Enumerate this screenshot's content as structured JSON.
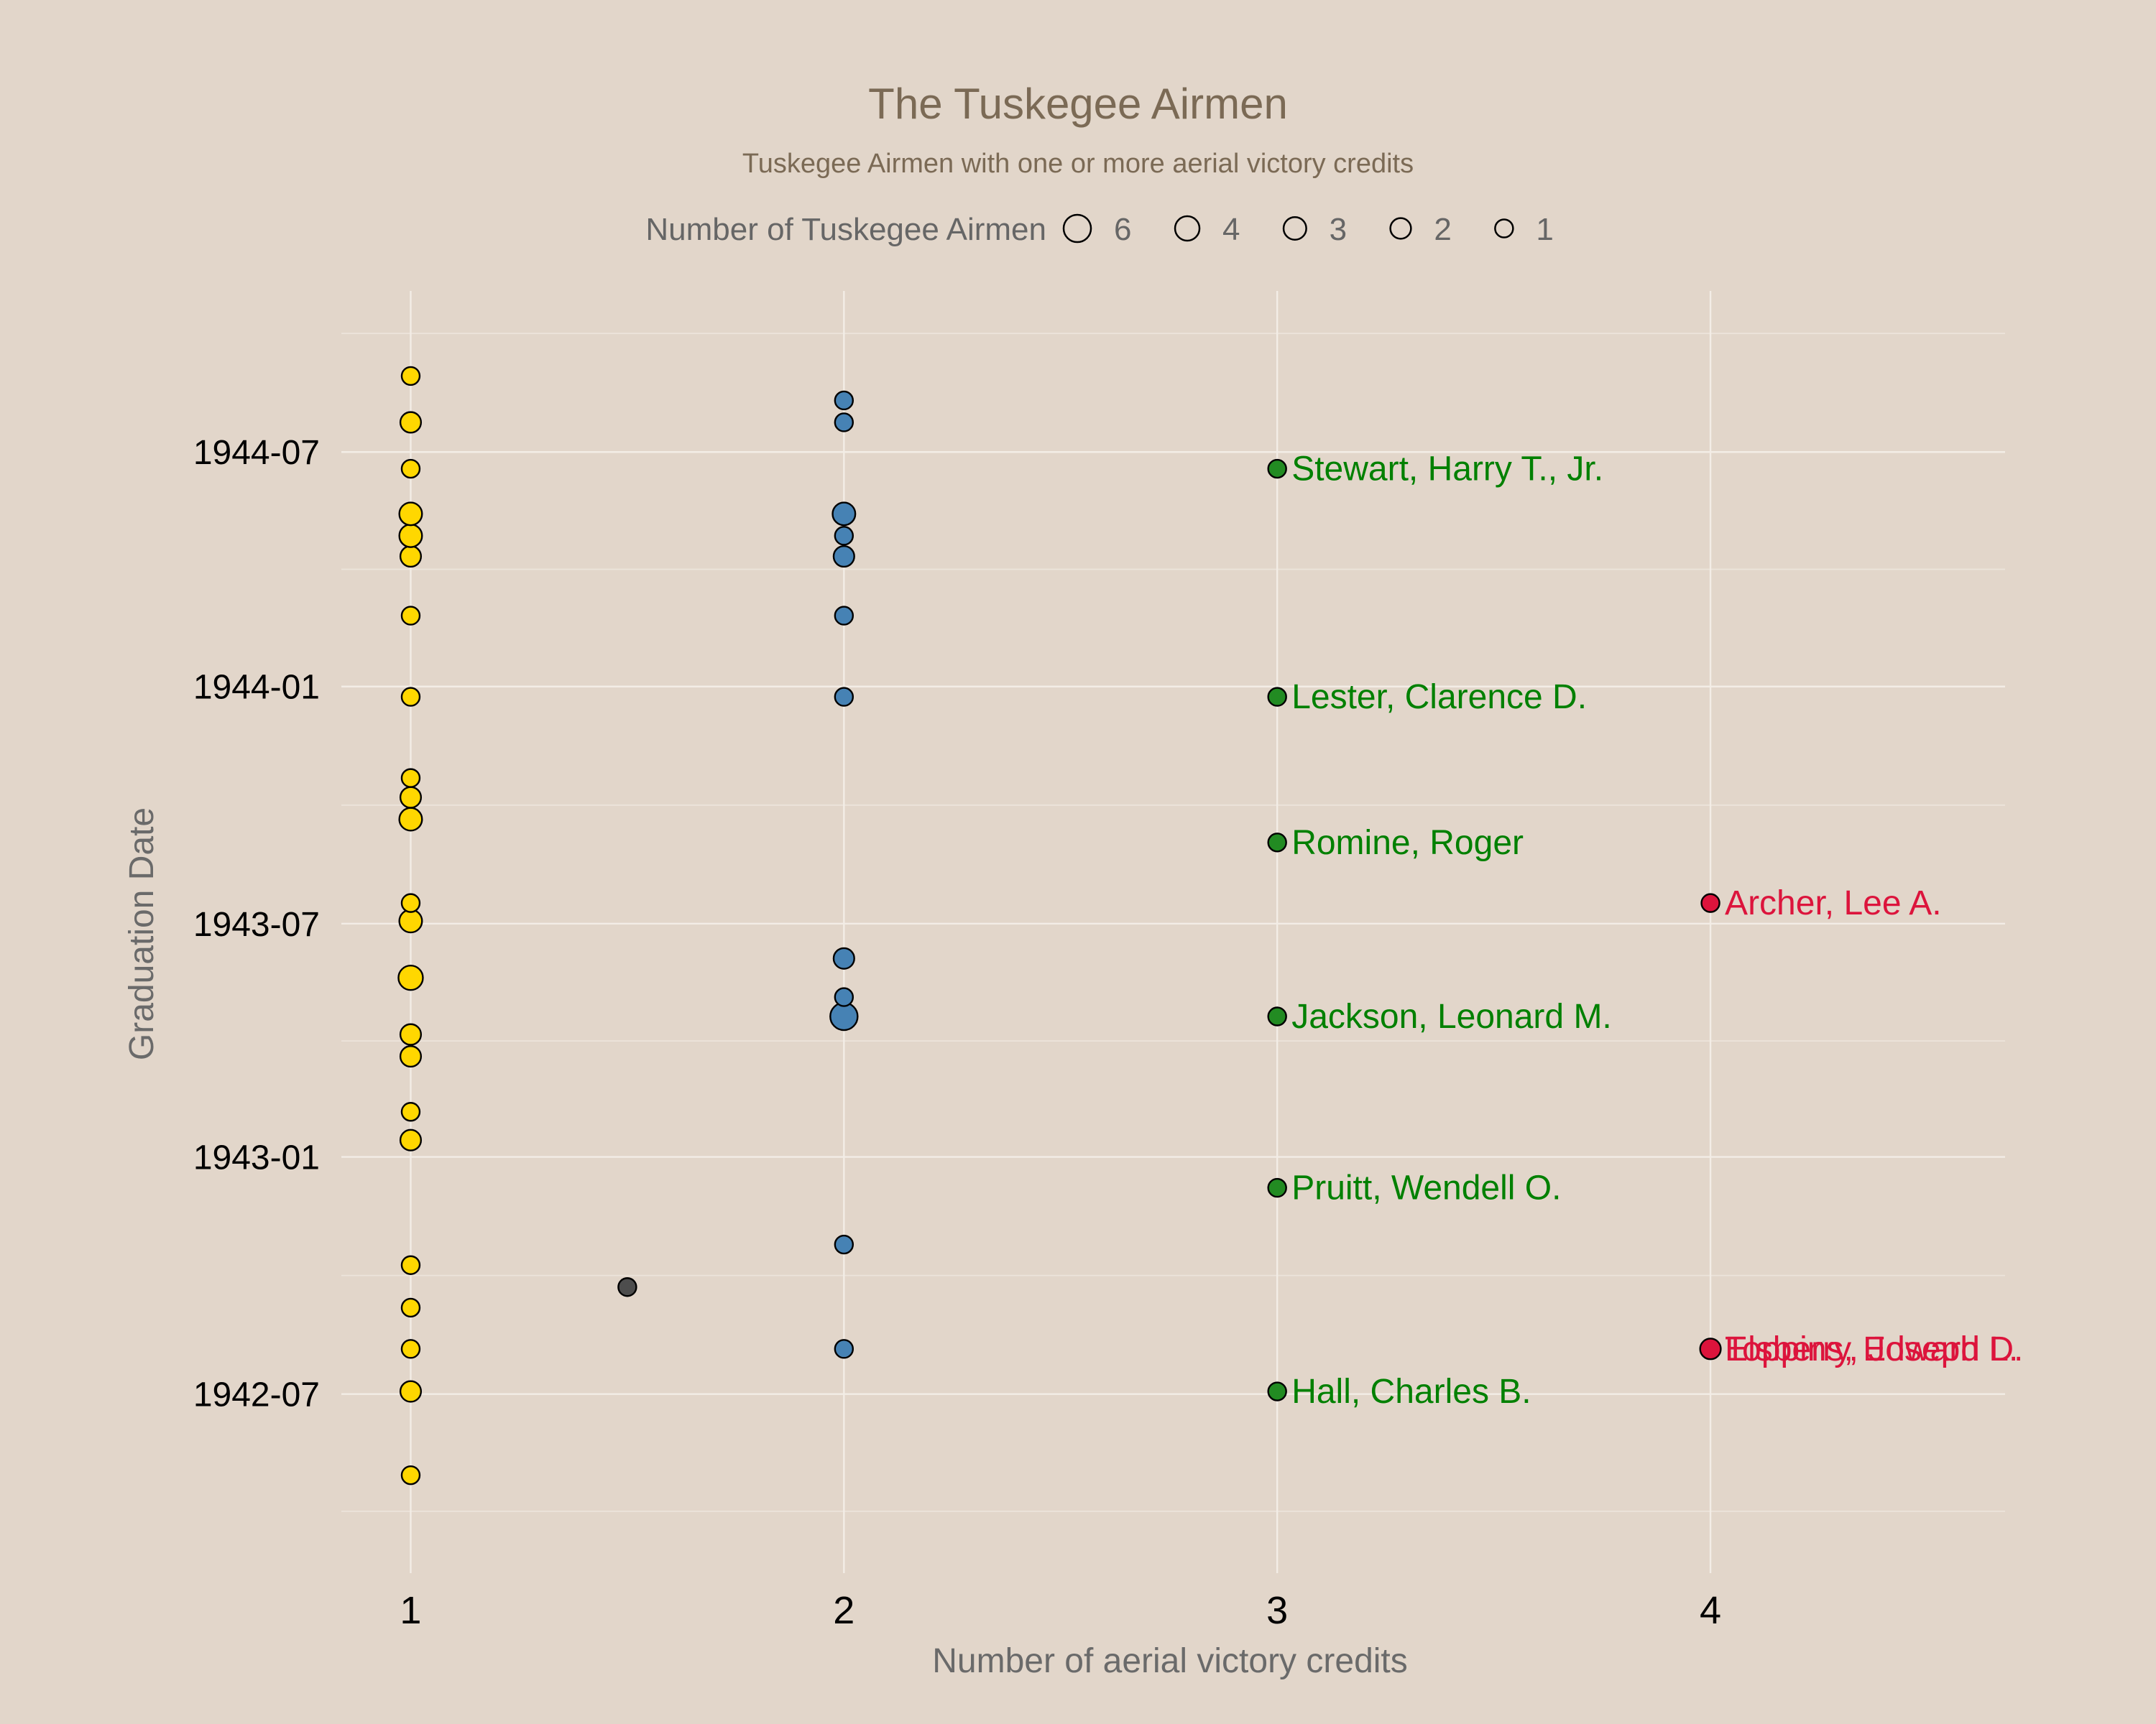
{
  "chart_data": {
    "type": "scatter",
    "title": "The Tuskegee Airmen",
    "subtitle": "Tuskegee Airmen with one or more aerial victory credits",
    "xlabel": "Number of aerial victory credits",
    "ylabel": "Graduation Date",
    "x_ticks": [
      "1",
      "2",
      "3",
      "4"
    ],
    "y_ticks": [
      "1942-07",
      "1943-01",
      "1943-07",
      "1944-01",
      "1944-07"
    ],
    "xlim": [
      0.84,
      4.68
    ],
    "ylim": [
      "1942-02-12",
      "1944-11-03"
    ],
    "grid": true,
    "legend": {
      "title": "Number of Tuskegee Airmen",
      "placement": "top",
      "sizes": [
        6,
        4,
        3,
        2,
        1
      ]
    },
    "colors": {
      "1": "#ffd700",
      "1.5": "#4d4d4d",
      "2": "#4682b4",
      "3": "#228b22",
      "4": "#dc143c",
      "label_3": "#008000",
      "label_4": "#dc143c",
      "background": "#e2d6ca"
    },
    "points": [
      {
        "x": 1,
        "y": "1942-04-29",
        "count": 1
      },
      {
        "x": 1,
        "y": "1942-07-03",
        "count": 2
      },
      {
        "x": 1,
        "y": "1942-08-05",
        "count": 1
      },
      {
        "x": 1,
        "y": "1942-09-06",
        "count": 1
      },
      {
        "x": 1,
        "y": "1942-10-09",
        "count": 1
      },
      {
        "x": 1,
        "y": "1943-01-14",
        "count": 2
      },
      {
        "x": 1,
        "y": "1943-02-05",
        "count": 1
      },
      {
        "x": 1,
        "y": "1943-03-20",
        "count": 2
      },
      {
        "x": 1,
        "y": "1943-04-06",
        "count": 2
      },
      {
        "x": 1,
        "y": "1943-05-20",
        "count": 4
      },
      {
        "x": 1,
        "y": "1943-07-03",
        "count": 3
      },
      {
        "x": 1,
        "y": "1943-07-17",
        "count": 1
      },
      {
        "x": 1,
        "y": "1943-09-20",
        "count": 3
      },
      {
        "x": 1,
        "y": "1943-10-07",
        "count": 2
      },
      {
        "x": 1,
        "y": "1943-10-22",
        "count": 1
      },
      {
        "x": 1,
        "y": "1943-12-24",
        "count": 1
      },
      {
        "x": 1,
        "y": "1944-02-25",
        "count": 1
      },
      {
        "x": 1,
        "y": "1944-04-11",
        "count": 2
      },
      {
        "x": 1,
        "y": "1944-04-27",
        "count": 3
      },
      {
        "x": 1,
        "y": "1944-05-14",
        "count": 3
      },
      {
        "x": 1,
        "y": "1944-06-18",
        "count": 1
      },
      {
        "x": 1,
        "y": "1944-07-24",
        "count": 2
      },
      {
        "x": 1,
        "y": "1944-08-29",
        "count": 1
      },
      {
        "x": 1.5,
        "y": "1942-09-22",
        "count": 1
      },
      {
        "x": 2,
        "y": "1942-08-05",
        "count": 1
      },
      {
        "x": 2,
        "y": "1942-10-25",
        "count": 1
      },
      {
        "x": 2,
        "y": "1943-04-20",
        "count": 6
      },
      {
        "x": 2,
        "y": "1943-05-05",
        "count": 1
      },
      {
        "x": 2,
        "y": "1943-06-04",
        "count": 2
      },
      {
        "x": 2,
        "y": "1943-12-24",
        "count": 1
      },
      {
        "x": 2,
        "y": "1944-02-25",
        "count": 1
      },
      {
        "x": 2,
        "y": "1944-04-11",
        "count": 2
      },
      {
        "x": 2,
        "y": "1944-04-27",
        "count": 1
      },
      {
        "x": 2,
        "y": "1944-05-14",
        "count": 3
      },
      {
        "x": 2,
        "y": "1944-07-24",
        "count": 1
      },
      {
        "x": 2,
        "y": "1944-08-10",
        "count": 1
      },
      {
        "x": 3,
        "y": "1942-07-03",
        "count": 1,
        "label": "Hall, Charles B."
      },
      {
        "x": 3,
        "y": "1942-12-08",
        "count": 1,
        "label": "Pruitt, Wendell O."
      },
      {
        "x": 3,
        "y": "1943-04-20",
        "count": 1,
        "label": "Jackson, Leonard M."
      },
      {
        "x": 3,
        "y": "1943-09-02",
        "count": 1,
        "label": "Romine, Roger"
      },
      {
        "x": 3,
        "y": "1943-12-24",
        "count": 1,
        "label": "Lester, Clarence D."
      },
      {
        "x": 3,
        "y": "1944-06-18",
        "count": 1,
        "label": "Stewart, Harry T., Jr."
      },
      {
        "x": 4,
        "y": "1942-08-05",
        "count": 2,
        "label": "Elsberry, Joseph D."
      },
      {
        "x": 4,
        "y": "1942-08-05",
        "count": 0,
        "label": "Toppins, Edward L."
      },
      {
        "x": 4,
        "y": "1943-07-17",
        "count": 1,
        "label": "Archer, Lee A."
      }
    ]
  }
}
